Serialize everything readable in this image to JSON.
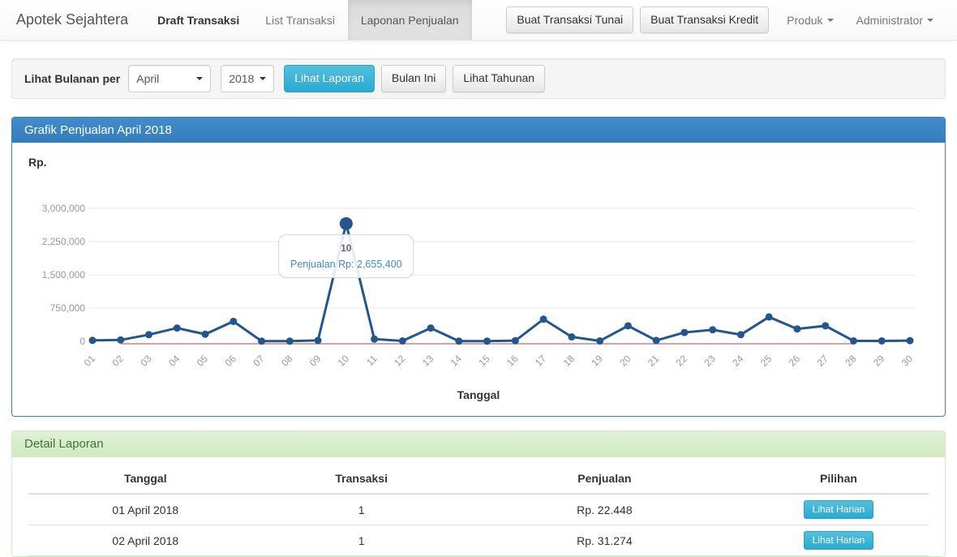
{
  "navbar": {
    "brand": "Apotek Sejahtera",
    "items": [
      {
        "label": "Draft Transaksi"
      },
      {
        "label": "List Transaksi"
      },
      {
        "label": "Laponan Penjualan"
      }
    ],
    "buttons": [
      {
        "label": "Buat Transaksi Tunai"
      },
      {
        "label": "Buat Transaksi Kredit"
      }
    ],
    "dropdowns": [
      {
        "label": "Produk"
      },
      {
        "label": "Administrator"
      }
    ]
  },
  "filter": {
    "label": "Lihat Bulanan per",
    "month_value": "April",
    "year_value": "2018",
    "submit_label": "Lihat Laporan",
    "this_month_label": "Bulan Ini",
    "yearly_label": "Lihat Tahunan"
  },
  "chart_panel": {
    "title": "Grafik Penjualan April 2018",
    "y_axis_label": "Rp.",
    "x_axis_label": "Tanggal",
    "tooltip": {
      "title": "10",
      "text": "Penjualan Rp: 2,655,400"
    }
  },
  "chart_data": {
    "type": "line",
    "title": "Grafik Penjualan April 2018",
    "xlabel": "Tanggal",
    "ylabel": "Rp.",
    "x": [
      "01",
      "02",
      "03",
      "04",
      "05",
      "06",
      "07",
      "08",
      "09",
      "10",
      "11",
      "12",
      "13",
      "14",
      "15",
      "16",
      "17",
      "18",
      "19",
      "20",
      "21",
      "22",
      "23",
      "24",
      "25",
      "26",
      "27",
      "28",
      "29",
      "30"
    ],
    "series": [
      {
        "name": "Penjualan",
        "color": "#22568c",
        "values": [
          22448,
          31274,
          150000,
          300000,
          160000,
          450000,
          5000,
          5000,
          20000,
          2655400,
          50000,
          10000,
          300000,
          5000,
          5000,
          15000,
          500000,
          100000,
          10000,
          350000,
          20000,
          200000,
          260000,
          150000,
          550000,
          280000,
          350000,
          10000,
          10000,
          15000
        ]
      },
      {
        "name": "baseline",
        "color": "#d9a3a3",
        "values": [
          null,
          0,
          0,
          0,
          0,
          0,
          0,
          0,
          0,
          0,
          0,
          0,
          0,
          0,
          0,
          0,
          0,
          0,
          0,
          0,
          0,
          0,
          0,
          0,
          0,
          0,
          0,
          0,
          null,
          null
        ]
      }
    ],
    "ylim": [
      0,
      3000000
    ],
    "yticks": [
      {
        "value": 3000000,
        "label": "3,000,000"
      },
      {
        "value": 2250000,
        "label": "2,250,000"
      },
      {
        "value": 1500000,
        "label": "1,500,000"
      },
      {
        "value": 750000,
        "label": "750,000"
      },
      {
        "value": 0,
        "label": "0"
      }
    ],
    "grid": true,
    "legend": "none",
    "highlight": {
      "index": 9,
      "value": 2655400
    }
  },
  "detail_panel": {
    "title": "Detail Laporan",
    "table": {
      "headers": [
        "Tanggal",
        "Transaksi",
        "Penjualan",
        "Pilihan"
      ],
      "rows": [
        {
          "tanggal": "01 April 2018",
          "transaksi": "1",
          "penjualan": "Rp. 22.448",
          "action": "Lihat Harian"
        },
        {
          "tanggal": "02 April 2018",
          "transaksi": "1",
          "penjualan": "Rp. 31.274",
          "action": "Lihat Harian"
        }
      ]
    }
  },
  "colors": {
    "primary": "#428bca",
    "primary_dark": "#357ebd",
    "info": "#5bc0de",
    "info_dark": "#2aabd2",
    "line": "#22568c",
    "baseline_line": "#d9a3a3",
    "grid": "#e7e7e7",
    "tick_text": "#999999",
    "success_bg": "#dff0d8",
    "success_text": "#3c763d"
  }
}
